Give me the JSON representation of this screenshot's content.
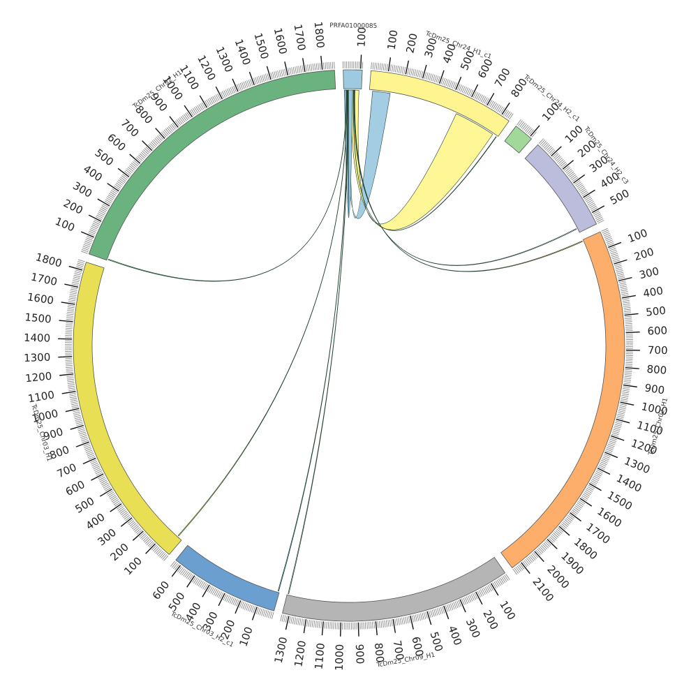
{
  "chart_data": {
    "type": "chord",
    "unit_scale": "ticks every 100 (minor ticks every 10)",
    "segments": [
      {
        "name": "PRFA01000085",
        "length": 110,
        "color": "#9ecae1",
        "ticks": [
          "100"
        ]
      },
      {
        "name": "TcDm25_Chr24_H1_c1",
        "length": 855,
        "color": "#fff590",
        "ticks": [
          "100",
          "200",
          "300",
          "400",
          "500",
          "600",
          "700",
          "800"
        ]
      },
      {
        "name": "TcDm25_Chr24_H2_c1",
        "length": 115,
        "color": "#a1d99b",
        "ticks": [
          "100"
        ]
      },
      {
        "name": "TcDm25_Chr24_H2_c3",
        "length": 570,
        "color": "#bcbddc",
        "ticks": [
          "100",
          "200",
          "300",
          "400",
          "500"
        ]
      },
      {
        "name": "TcDm25_Chr02_H1",
        "length": 2160,
        "color": "#fdae6b",
        "ticks": [
          "100",
          "200",
          "300",
          "400",
          "500",
          "600",
          "700",
          "800",
          "900",
          "1000",
          "1100",
          "1200",
          "1300",
          "1400",
          "1500",
          "1600",
          "1700",
          "1800",
          "1900",
          "2000",
          "2100"
        ]
      },
      {
        "name": "TcDm25_Chr09_H1",
        "length": 1340,
        "color": "#b5b5b5",
        "ticks": [
          "100",
          "200",
          "300",
          "400",
          "500",
          "600",
          "700",
          "800",
          "900",
          "1000",
          "1100",
          "1200",
          "1300"
        ]
      },
      {
        "name": "TcDm25_Chr03_H2_c1",
        "length": 640,
        "color": "#6a9fd0",
        "ticks": [
          "100",
          "200",
          "300",
          "400",
          "500",
          "600"
        ]
      },
      {
        "name": "TcDm25_Chr03_H1",
        "length": 1850,
        "color": "#e8df54",
        "ticks": [
          "100",
          "200",
          "300",
          "400",
          "500",
          "600",
          "700",
          "800",
          "900",
          "1000",
          "1100",
          "1200",
          "1300",
          "1400",
          "1500",
          "1600",
          "1700",
          "1800"
        ]
      },
      {
        "name": "TcDm25_Chr32_H1",
        "length": 1870,
        "color": "#6ab27e",
        "ticks": [
          "100",
          "200",
          "300",
          "400",
          "500",
          "600",
          "700",
          "800",
          "900",
          "1000",
          "1100",
          "1200",
          "1300",
          "1400",
          "1500",
          "1600",
          "1700",
          "1800"
        ]
      }
    ],
    "links": [
      {
        "from": "PRFA01000085",
        "from_range": [
          5,
          40
        ],
        "to": "TcDm25_Chr24_H1_c1",
        "to_range": [
          20,
          130
        ],
        "color": "#9ecae1"
      },
      {
        "from": "PRFA01000085",
        "from_range": [
          45,
          95
        ],
        "to": "TcDm25_Chr24_H1_c1",
        "to_range": [
          560,
          820
        ],
        "color": "#fff590"
      },
      {
        "from": "PRFA01000085",
        "from_range": [
          5,
          25
        ],
        "to": "PRFA01000085",
        "to_range": [
          30,
          55
        ],
        "color": "#9ecae1"
      },
      {
        "from": "PRFA01000085",
        "from_range": [
          60,
          62
        ],
        "to": "TcDm25_Chr24_H1_c1",
        "to_range": [
          845,
          848
        ],
        "color": "#6ab27e"
      },
      {
        "from": "PRFA01000085",
        "from_range": [
          64,
          66
        ],
        "to": "TcDm25_Chr24_H2_c3",
        "to_range": [
          540,
          545
        ],
        "color": "#bcbddc"
      },
      {
        "from": "PRFA01000085",
        "from_range": [
          68,
          70
        ],
        "to": "TcDm25_Chr02_H1",
        "to_range": [
          5,
          10
        ],
        "color": "#fdae6b"
      },
      {
        "from": "PRFA01000085",
        "from_range": [
          20,
          22
        ],
        "to": "TcDm25_Chr03_H1",
        "to_range": [
          30,
          35
        ],
        "color": "#e8df54"
      },
      {
        "from": "PRFA01000085",
        "from_range": [
          24,
          26
        ],
        "to": "TcDm25_Chr03_H2_c1",
        "to_range": [
          5,
          10
        ],
        "color": "#6a9fd0"
      },
      {
        "from": "PRFA01000085",
        "from_range": [
          27,
          29
        ],
        "to": "TcDm25_Chr09_H1",
        "to_range": [
          1330,
          1335
        ],
        "color": "#b5b5b5"
      },
      {
        "from": "TcDm25_Chr32_H1",
        "from_range": [
          5,
          10
        ],
        "to": "PRFA01000085",
        "to_range": [
          15,
          17
        ],
        "color": "#6ab27e"
      }
    ]
  }
}
